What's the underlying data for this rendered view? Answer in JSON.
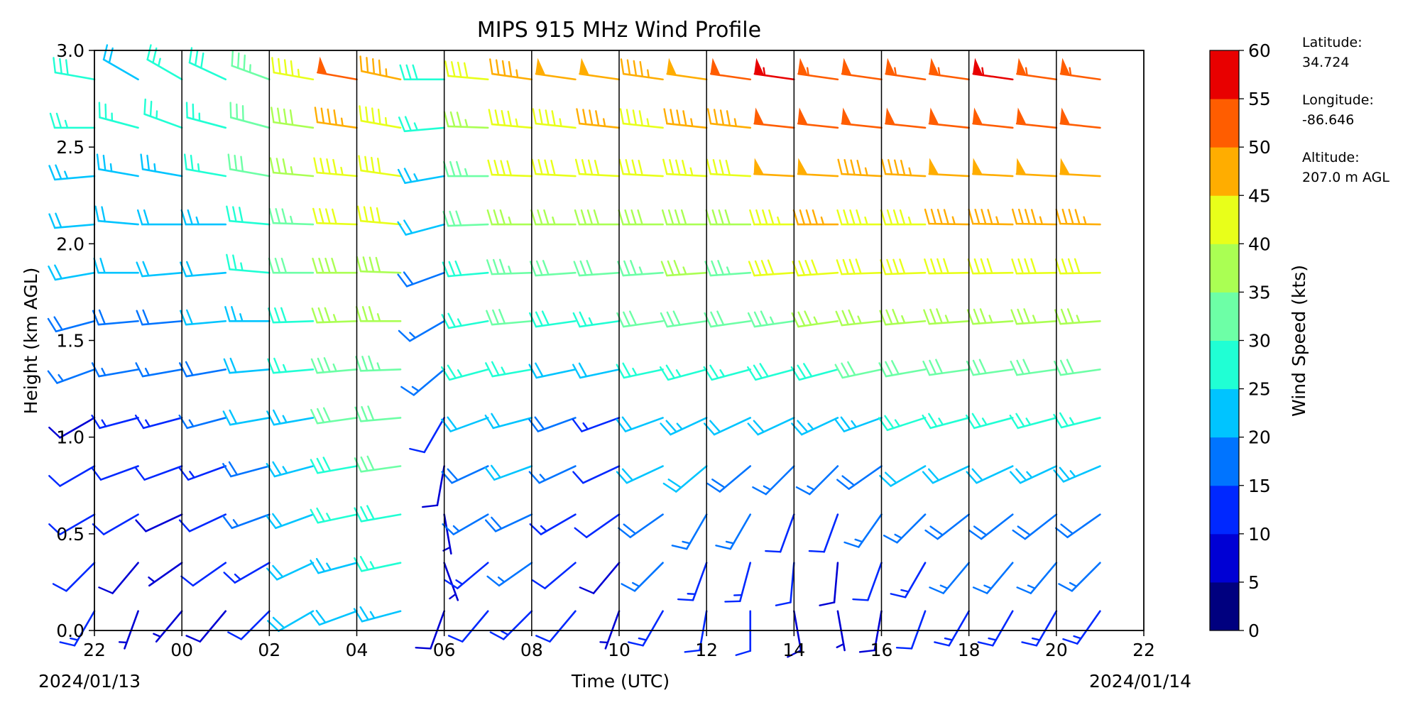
{
  "chart_data": {
    "type": "wind-barb",
    "title": "MIPS 915 MHz Wind Profile",
    "xlabel": "Time (UTC)",
    "ylabel": "Height (km AGL)",
    "x_ticks": [
      "22",
      "00",
      "02",
      "04",
      "06",
      "08",
      "10",
      "12",
      "14",
      "16",
      "18",
      "20",
      "22"
    ],
    "x_range_hours": [
      -2,
      22
    ],
    "start_date": "2024/01/13",
    "end_date": "2024/01/14",
    "y_ticks": [
      "0.0",
      "0.5",
      "1.0",
      "1.5",
      "2.0",
      "2.5",
      "3.0"
    ],
    "ylim": [
      0,
      3
    ],
    "grid": false,
    "vertical_lines_every_hours": 2,
    "colorbar": {
      "label": "Wind Speed (kts)",
      "ticks": [
        "0",
        "5",
        "10",
        "15",
        "20",
        "25",
        "30",
        "35",
        "40",
        "45",
        "50",
        "55",
        "60"
      ],
      "range": [
        0,
        60
      ],
      "step": 5,
      "colormap": "jet",
      "colors": [
        "#00007f",
        "#0000d4",
        "#0028ff",
        "#0074ff",
        "#00c4ff",
        "#20ffd4",
        "#6dffa6",
        "#aaff53",
        "#e8ff1a",
        "#ffad00",
        "#ff5d00",
        "#e80000",
        "#7f0000"
      ]
    },
    "station": {
      "latitude_label": "Latitude:",
      "latitude": "34.724",
      "longitude_label": "Longitude:",
      "longitude": "-86.646",
      "altitude_label": "Altitude:",
      "altitude": "207.0 m AGL"
    },
    "profiles": [
      {
        "time_hours": -2,
        "speed": [
          14,
          11,
          12,
          10,
          8,
          17,
          18,
          20,
          22,
          24,
          26,
          28,
          22
        ],
        "direction": [
          210,
          225,
          240,
          240,
          240,
          250,
          255,
          260,
          265,
          265,
          270,
          280,
          300
        ]
      },
      {
        "time_hours": -1,
        "speed": [
          6,
          8,
          10,
          12,
          14,
          17,
          19,
          21,
          22,
          24,
          25,
          22,
          0
        ],
        "direction": [
          200,
          220,
          240,
          250,
          255,
          260,
          265,
          270,
          275,
          280,
          285,
          300,
          0
        ]
      },
      {
        "time_hours": 0,
        "speed": [
          5,
          7,
          9,
          12,
          14,
          16,
          18,
          20,
          22,
          24,
          26,
          27,
          26
        ],
        "direction": [
          220,
          235,
          245,
          250,
          255,
          260,
          265,
          265,
          270,
          280,
          290,
          300,
          310
        ]
      },
      {
        "time_hours": 1,
        "speed": [
          8,
          10,
          12,
          14,
          16,
          18,
          20,
          22,
          24,
          26,
          27,
          28,
          29
        ],
        "direction": [
          220,
          235,
          245,
          250,
          255,
          260,
          265,
          265,
          270,
          280,
          285,
          295,
          305
        ]
      },
      {
        "time_hours": 2,
        "speed": [
          12,
          14,
          16,
          18,
          20,
          22,
          24,
          26,
          28,
          30,
          32,
          34,
          36
        ],
        "direction": [
          225,
          240,
          250,
          255,
          260,
          265,
          270,
          275,
          275,
          280,
          285,
          290,
          290
        ]
      },
      {
        "time_hours": 3,
        "speed": [
          20,
          21,
          22,
          23,
          24,
          26,
          28,
          30,
          33,
          36,
          39,
          44,
          52
        ],
        "direction": [
          240,
          245,
          250,
          255,
          260,
          265,
          268,
          270,
          272,
          275,
          278,
          280,
          282
        ]
      },
      {
        "time_hours": 4,
        "speed": [
          22,
          24,
          26,
          28,
          30,
          33,
          36,
          39,
          42,
          44,
          47,
          50,
          52
        ],
        "direction": [
          250,
          255,
          258,
          260,
          262,
          265,
          268,
          270,
          272,
          275,
          278,
          280,
          282
        ]
      },
      {
        "time_hours": 5,
        "speed": [
          24,
          26,
          28,
          30,
          32,
          34,
          36,
          38,
          40,
          42,
          44,
          45,
          47
        ],
        "direction": [
          255,
          258,
          260,
          262,
          265,
          268,
          270,
          272,
          275,
          278,
          280,
          282,
          285
        ]
      },
      {
        "time_hours": 6,
        "speed": [
          8,
          6,
          7,
          9,
          11,
          15,
          17,
          19,
          21,
          23,
          26,
          28,
          30
        ],
        "direction": [
          200,
          160,
          170,
          190,
          210,
          230,
          240,
          250,
          255,
          260,
          265,
          270,
          275
        ]
      },
      {
        "time_hours": 7,
        "speed": [
          12,
          14,
          16,
          18,
          22,
          25,
          27,
          29,
          31,
          33,
          36,
          40,
          44
        ],
        "direction": [
          220,
          230,
          240,
          245,
          250,
          255,
          260,
          265,
          268,
          270,
          272,
          275,
          278
        ]
      },
      {
        "time_hours": 8,
        "speed": [
          14,
          16,
          18,
          20,
          22,
          26,
          30,
          33,
          36,
          40,
          43,
          45,
          48
        ],
        "direction": [
          225,
          235,
          245,
          250,
          255,
          260,
          265,
          268,
          270,
          272,
          275,
          278,
          280
        ]
      },
      {
        "time_hours": 9,
        "speed": [
          10,
          12,
          14,
          16,
          18,
          22,
          28,
          32,
          36,
          40,
          44,
          48,
          50
        ],
        "direction": [
          220,
          230,
          240,
          245,
          250,
          258,
          262,
          266,
          270,
          273,
          276,
          278,
          280
        ]
      },
      {
        "time_hours": 10,
        "speed": [
          6,
          8,
          10,
          12,
          14,
          20,
          26,
          32,
          38,
          42,
          46,
          48,
          50
        ],
        "direction": [
          200,
          220,
          235,
          245,
          250,
          258,
          262,
          266,
          270,
          273,
          276,
          278,
          280
        ]
      },
      {
        "time_hours": 11,
        "speed": [
          14,
          16,
          18,
          20,
          22,
          26,
          30,
          34,
          38,
          42,
          44,
          46,
          48
        ],
        "direction": [
          210,
          225,
          235,
          245,
          250,
          258,
          262,
          266,
          270,
          273,
          276,
          278,
          280
        ]
      },
      {
        "time_hours": 12,
        "speed": [
          12,
          14,
          17,
          20,
          23,
          27,
          31,
          35,
          39,
          43,
          46,
          49,
          52
        ],
        "direction": [
          190,
          200,
          210,
          230,
          245,
          255,
          262,
          266,
          270,
          273,
          276,
          278,
          280
        ]
      },
      {
        "time_hours": 13,
        "speed": [
          10,
          13,
          16,
          19,
          22,
          26,
          30,
          34,
          38,
          42,
          46,
          50,
          53
        ],
        "direction": [
          180,
          195,
          210,
          230,
          245,
          255,
          262,
          266,
          270,
          273,
          276,
          278,
          280
        ]
      },
      {
        "time_hours": 14,
        "speed": [
          8,
          10,
          12,
          16,
          22,
          28,
          34,
          40,
          44,
          48,
          52,
          55,
          56
        ],
        "direction": [
          170,
          185,
          200,
          225,
          245,
          255,
          262,
          266,
          270,
          273,
          276,
          278,
          280
        ]
      },
      {
        "time_hours": 15,
        "speed": [
          6,
          9,
          12,
          17,
          23,
          29,
          35,
          40,
          45,
          48,
          51,
          54,
          56
        ],
        "direction": [
          170,
          185,
          200,
          225,
          245,
          255,
          262,
          266,
          270,
          273,
          276,
          278,
          280
        ]
      },
      {
        "time_hours": 16,
        "speed": [
          9,
          12,
          15,
          19,
          24,
          30,
          35,
          40,
          44,
          47,
          50,
          52,
          54
        ],
        "direction": [
          190,
          200,
          215,
          235,
          250,
          258,
          264,
          268,
          270,
          273,
          276,
          278,
          280
        ]
      },
      {
        "time_hours": 17,
        "speed": [
          12,
          14,
          17,
          21,
          25,
          30,
          35,
          40,
          44,
          47,
          50,
          53,
          55
        ],
        "direction": [
          200,
          210,
          225,
          240,
          252,
          260,
          265,
          268,
          270,
          273,
          276,
          278,
          280
        ]
      },
      {
        "time_hours": 18,
        "speed": [
          14,
          16,
          19,
          22,
          26,
          31,
          36,
          41,
          45,
          48,
          51,
          54,
          57
        ],
        "direction": [
          210,
          220,
          232,
          245,
          255,
          262,
          266,
          269,
          271,
          273,
          276,
          278,
          280
        ]
      },
      {
        "time_hours": 19,
        "speed": [
          13,
          15,
          18,
          22,
          27,
          32,
          37,
          42,
          46,
          49,
          52,
          55,
          58
        ],
        "direction": [
          210,
          220,
          232,
          245,
          255,
          262,
          266,
          269,
          271,
          273,
          276,
          278,
          280
        ]
      },
      {
        "time_hours": 20,
        "speed": [
          13,
          15,
          19,
          23,
          27,
          32,
          37,
          41,
          45,
          48,
          51,
          54,
          57
        ],
        "direction": [
          210,
          220,
          232,
          245,
          255,
          262,
          266,
          269,
          271,
          273,
          276,
          278,
          280
        ]
      },
      {
        "time_hours": 21,
        "speed": [
          13,
          15,
          19,
          23,
          27,
          32,
          37,
          41,
          45,
          48,
          51,
          54,
          57
        ],
        "direction": [
          215,
          225,
          235,
          247,
          256,
          262,
          266,
          269,
          271,
          273,
          276,
          278,
          280
        ]
      }
    ],
    "profile_heights_km": [
      0.1,
      0.35,
      0.6,
      0.85,
      1.1,
      1.35,
      1.6,
      1.85,
      2.1,
      2.35,
      2.6,
      2.85,
      3.0
    ]
  }
}
